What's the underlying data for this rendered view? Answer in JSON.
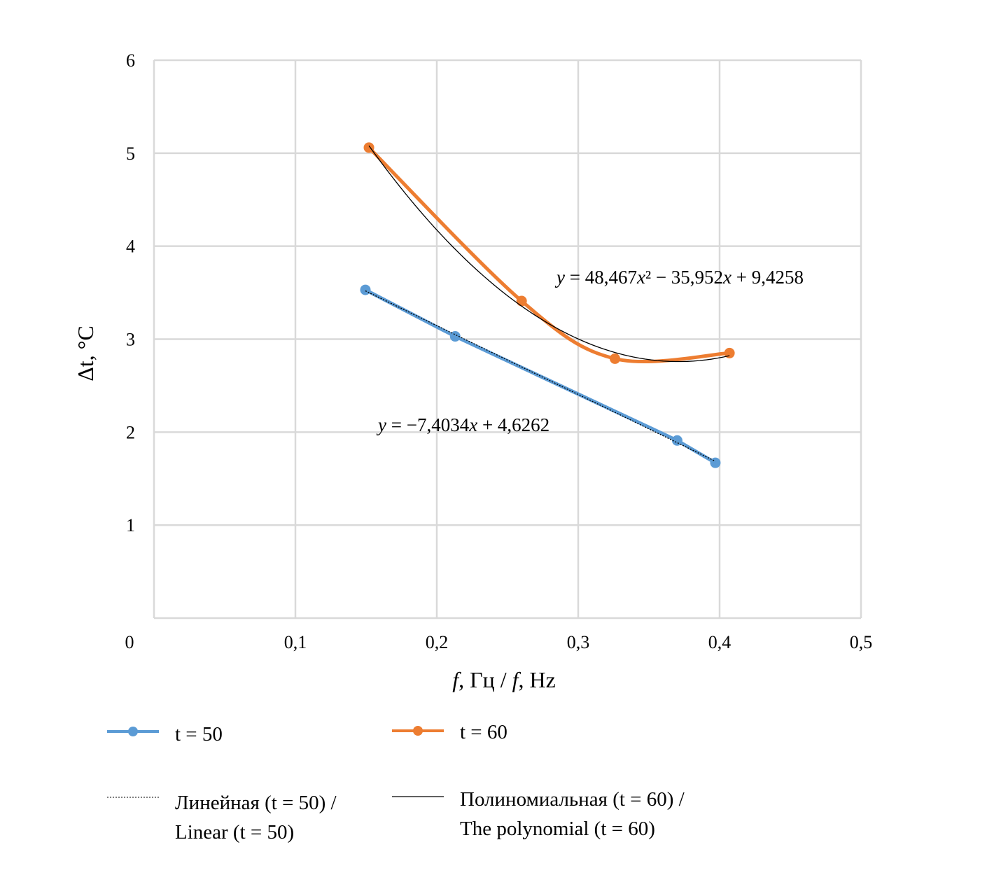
{
  "chart_data": {
    "type": "scatter",
    "xlabel_parts": [
      "f",
      ", Гц / ",
      "f",
      ", Hz"
    ],
    "ylabel": "Δt, °C",
    "xlim": [
      0,
      0.5
    ],
    "ylim": [
      0,
      6
    ],
    "x_ticks": [
      "0",
      "0,1",
      "0,2",
      "0,3",
      "0,4",
      "0,5"
    ],
    "x_tick_values": [
      0,
      0.1,
      0.2,
      0.3,
      0.4,
      0.5
    ],
    "y_ticks": [
      "1",
      "2",
      "3",
      "4",
      "5",
      "6"
    ],
    "y_tick_values": [
      1,
      2,
      3,
      4,
      5,
      6
    ],
    "grid": true,
    "legend_placement": "bottom",
    "series": [
      {
        "name": "t = 50",
        "color": "#5b9bd5",
        "smooth": false,
        "x": [
          0.1495,
          0.213,
          0.37,
          0.397
        ],
        "y": [
          3.53,
          3.03,
          1.91,
          1.67
        ]
      },
      {
        "name": "t = 60",
        "color": "#ed7d31",
        "smooth": true,
        "x": [
          0.152,
          0.26,
          0.326,
          0.407
        ],
        "y": [
          5.06,
          3.41,
          2.79,
          2.85
        ]
      }
    ],
    "trendlines": [
      {
        "legend_lines": [
          "Линейная (t = 50) /",
          "Linear (t = 50)"
        ],
        "type": "linear",
        "series": "t = 50",
        "coefficients": [
          -7.4034,
          4.6262
        ],
        "x_range": [
          0.1495,
          0.397
        ],
        "equation_parts": [
          "y",
          " = −7,4034",
          "x",
          " + 4,6262"
        ],
        "style": "dotted",
        "color": "#000000"
      },
      {
        "legend_lines": [
          "Полиномиальная (t = 60) /",
          "The polynomial (t = 60)"
        ],
        "type": "polynomial",
        "series": "t = 60",
        "coefficients": [
          48.467,
          -35.952,
          9.4258
        ],
        "x_range": [
          0.152,
          0.407
        ],
        "equation_parts": [
          "y",
          " = 48,467",
          "x",
          "²",
          " − 35,952",
          "x",
          " + 9,4258"
        ],
        "style": "solid",
        "color": "#000000"
      }
    ]
  }
}
